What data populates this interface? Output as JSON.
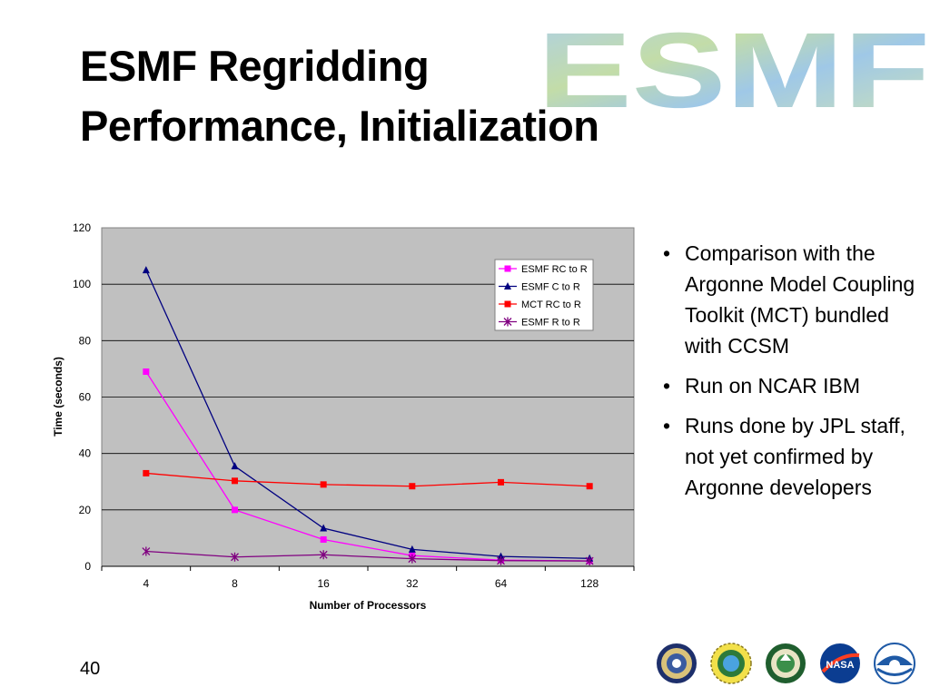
{
  "slide": {
    "title_line1": "ESMF Regridding",
    "title_line2": "Performance, Initialization",
    "logo_text": "ESMF",
    "page_number": "40",
    "bullets": [
      "Comparison with the Argonne Model Coupling Toolkit (MCT) bundled with CCSM",
      "Run on NCAR IBM",
      "Runs done by JPL staff, not yet confirmed by Argonne developers"
    ],
    "seal_icons": [
      "dod-seal-icon",
      "nsf-seal-icon",
      "doe-seal-icon",
      "nasa-logo-icon",
      "noaa-logo-icon"
    ]
  },
  "chart_data": {
    "type": "line",
    "title": "",
    "xlabel": "Number of Processors",
    "ylabel": "Time (seconds)",
    "categories": [
      "4",
      "8",
      "16",
      "32",
      "64",
      "128"
    ],
    "ylim": [
      0,
      120
    ],
    "yticks": [
      0,
      20,
      40,
      60,
      80,
      100,
      120
    ],
    "grid": true,
    "legend_position": "top-right",
    "plot_background": "#c0c0c0",
    "series": [
      {
        "name": "ESMF RC to R",
        "color": "#ff00ff",
        "marker": "square",
        "values": [
          69,
          20,
          9.5,
          3.8,
          2.2,
          1.9
        ]
      },
      {
        "name": "ESMF C to R",
        "color": "#000080",
        "marker": "triangle",
        "values": [
          105,
          35.5,
          13.5,
          6,
          3.5,
          2.8
        ]
      },
      {
        "name": "MCT RC to R",
        "color": "#ff0000",
        "marker": "square",
        "values": [
          33,
          30.3,
          29,
          28.4,
          29.8,
          28.4
        ]
      },
      {
        "name": "ESMF R to R",
        "color": "#800080",
        "marker": "star",
        "values": [
          5.3,
          3.3,
          4.1,
          2.7,
          2,
          1.9
        ]
      }
    ]
  }
}
